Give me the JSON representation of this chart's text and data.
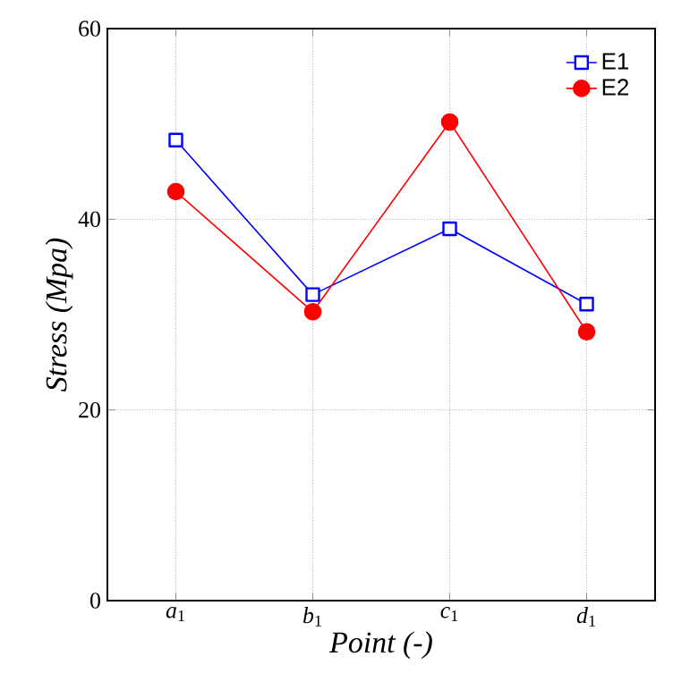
{
  "chart_data": {
    "type": "line",
    "xlabel": "*Point (-)*",
    "ylabel": "*Stress (Mpa)*",
    "categories": [
      "*a*$_{1}$",
      "*b*$_{1}$",
      "*c*$_{1}$",
      "*d*$_{1}$"
    ],
    "series": [
      {
        "name": "E1",
        "color": "#0000ff",
        "marker": "square",
        "values": [
          48.3,
          32.1,
          39.0,
          31.1
        ]
      },
      {
        "name": "E2",
        "color": "#ff0000",
        "marker": "circle",
        "values": [
          42.9,
          30.3,
          50.2,
          28.2
        ]
      }
    ],
    "ylim": [
      0,
      60
    ],
    "yticks": [
      0,
      20,
      40,
      60
    ],
    "grid": true,
    "legend": "top right",
    "line_style": "solid"
  }
}
